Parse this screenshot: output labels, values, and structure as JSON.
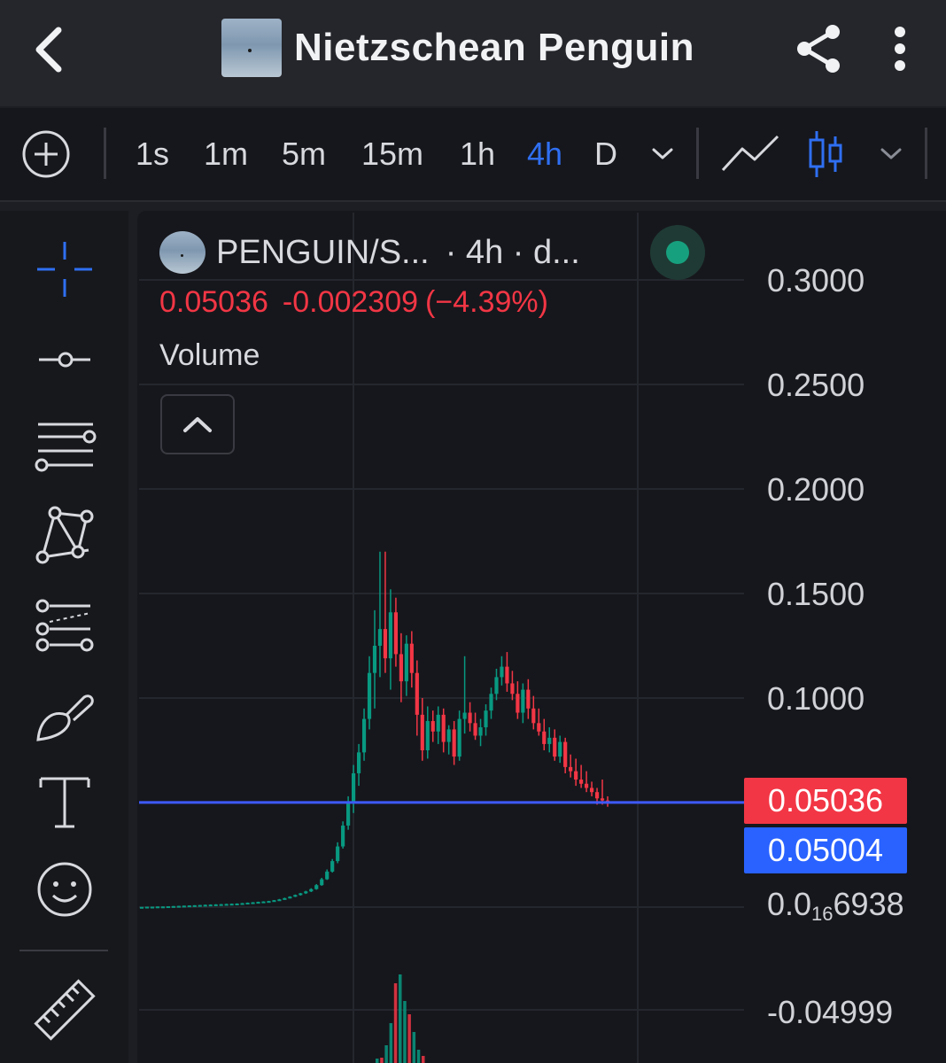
{
  "appbar": {
    "title": "Nietzschean Penguin",
    "back_icon": "chevron-left-icon",
    "share_icon": "share-icon",
    "more_icon": "more-vertical-icon"
  },
  "toolbar": {
    "add_icon": "plus-circle-icon",
    "intervals": [
      "1s",
      "1m",
      "5m",
      "15m",
      "1h",
      "4h",
      "D"
    ],
    "active_interval": "4h",
    "interval_dropdown_icon": "chevron-down-icon",
    "chart_type_line_icon": "line-chart-icon",
    "chart_type_candles_icon": "candlestick-icon",
    "chart_type_dropdown_icon": "chevron-down-icon"
  },
  "sidebar": {
    "tools": [
      {
        "name": "crosshair-icon"
      },
      {
        "name": "horizontal-line-icon"
      },
      {
        "name": "parallel-lines-icon"
      },
      {
        "name": "pattern-icon"
      },
      {
        "name": "fib-lines-icon"
      },
      {
        "name": "brush-icon"
      },
      {
        "name": "text-icon"
      },
      {
        "name": "emoji-icon"
      },
      {
        "name": "ruler-icon"
      }
    ]
  },
  "legend": {
    "symbol": "PENGUIN/S...",
    "meta": "· 4h · d...",
    "last": "0.05036",
    "change": "-0.002309",
    "change_pct": "(−4.39%)",
    "volume_label": "Volume",
    "status_color": "#17a07e"
  },
  "colors": {
    "up": "#089981",
    "down": "#f23645",
    "accent": "#2f6ff2",
    "background": "#16171c"
  },
  "chart_data": {
    "type": "candlestick",
    "y_ticks": [
      "0.3000",
      "0.2500",
      "0.2000",
      "0.1500",
      "0.1000"
    ],
    "y_tick_small_prefix": "0.0",
    "y_tick_small_subscript": "16",
    "y_tick_small_suffix": "6938",
    "y_tick_bottom": "-0.04999",
    "ylim": [
      0.0,
      0.32
    ],
    "price_tags": [
      {
        "value": "0.05036",
        "color": "#f23645"
      },
      {
        "value": "0.05004",
        "color": "#2962ff"
      }
    ],
    "price_line": 0.05004,
    "candles": [
      [
        0.0001,
        0.0001,
        0.0001,
        0.0001
      ],
      [
        0.0001,
        0.0002,
        0.0001,
        0.0002
      ],
      [
        0.0002,
        0.0002,
        0.0001,
        0.0002
      ],
      [
        0.0002,
        0.0003,
        0.0002,
        0.0003
      ],
      [
        0.0003,
        0.0003,
        0.0002,
        0.0003
      ],
      [
        0.0003,
        0.0004,
        0.0003,
        0.0004
      ],
      [
        0.0004,
        0.0005,
        0.0004,
        0.0005
      ],
      [
        0.0005,
        0.0006,
        0.0004,
        0.0006
      ],
      [
        0.0006,
        0.0007,
        0.0005,
        0.0007
      ],
      [
        0.0007,
        0.0008,
        0.0006,
        0.0008
      ],
      [
        0.0008,
        0.0009,
        0.0007,
        0.0009
      ],
      [
        0.0009,
        0.001,
        0.0008,
        0.001
      ],
      [
        0.001,
        0.0012,
        0.0009,
        0.0011
      ],
      [
        0.0011,
        0.0013,
        0.001,
        0.0012
      ],
      [
        0.0012,
        0.0014,
        0.0011,
        0.0013
      ],
      [
        0.0013,
        0.0015,
        0.0012,
        0.0014
      ],
      [
        0.0014,
        0.0016,
        0.0013,
        0.0015
      ],
      [
        0.0015,
        0.0017,
        0.0014,
        0.0016
      ],
      [
        0.0016,
        0.0018,
        0.0015,
        0.0017
      ],
      [
        0.0017,
        0.002,
        0.0016,
        0.0019
      ],
      [
        0.0019,
        0.0022,
        0.0018,
        0.0021
      ],
      [
        0.0021,
        0.0024,
        0.002,
        0.0023
      ],
      [
        0.0023,
        0.0026,
        0.0022,
        0.0025
      ],
      [
        0.0025,
        0.0028,
        0.0024,
        0.0027
      ],
      [
        0.0027,
        0.003,
        0.0026,
        0.0029
      ],
      [
        0.0029,
        0.0034,
        0.0028,
        0.0033
      ],
      [
        0.0033,
        0.0039,
        0.0031,
        0.0037
      ],
      [
        0.0037,
        0.0045,
        0.0035,
        0.0043
      ],
      [
        0.0043,
        0.0052,
        0.0041,
        0.005
      ],
      [
        0.005,
        0.006,
        0.0048,
        0.0058
      ],
      [
        0.0058,
        0.0068,
        0.0055,
        0.0066
      ],
      [
        0.0066,
        0.0078,
        0.0063,
        0.0075
      ],
      [
        0.0075,
        0.009,
        0.0072,
        0.0086
      ],
      [
        0.0086,
        0.011,
        0.0083,
        0.0105
      ],
      [
        0.0105,
        0.014,
        0.0102,
        0.0133
      ],
      [
        0.0133,
        0.018,
        0.013,
        0.017
      ],
      [
        0.017,
        0.023,
        0.0165,
        0.022
      ],
      [
        0.022,
        0.031,
        0.021,
        0.029
      ],
      [
        0.029,
        0.041,
        0.028,
        0.039
      ],
      [
        0.039,
        0.053,
        0.037,
        0.05
      ],
      [
        0.05,
        0.068,
        0.045,
        0.064
      ],
      [
        0.064,
        0.078,
        0.058,
        0.074
      ],
      [
        0.074,
        0.095,
        0.07,
        0.09
      ],
      [
        0.09,
        0.12,
        0.085,
        0.112
      ],
      [
        0.112,
        0.142,
        0.095,
        0.125
      ],
      [
        0.125,
        0.17,
        0.11,
        0.133
      ],
      [
        0.133,
        0.17,
        0.112,
        0.119
      ],
      [
        0.119,
        0.152,
        0.104,
        0.141
      ],
      [
        0.141,
        0.148,
        0.115,
        0.121
      ],
      [
        0.121,
        0.131,
        0.098,
        0.108
      ],
      [
        0.108,
        0.13,
        0.101,
        0.126
      ],
      [
        0.126,
        0.132,
        0.105,
        0.112
      ],
      [
        0.112,
        0.118,
        0.082,
        0.092
      ],
      [
        0.092,
        0.1,
        0.07,
        0.075
      ],
      [
        0.075,
        0.096,
        0.071,
        0.089
      ],
      [
        0.089,
        0.094,
        0.079,
        0.084
      ],
      [
        0.084,
        0.096,
        0.078,
        0.092
      ],
      [
        0.092,
        0.095,
        0.074,
        0.079
      ],
      [
        0.079,
        0.087,
        0.073,
        0.085
      ],
      [
        0.085,
        0.089,
        0.068,
        0.072
      ],
      [
        0.072,
        0.094,
        0.07,
        0.09
      ],
      [
        0.09,
        0.12,
        0.083,
        0.093
      ],
      [
        0.093,
        0.098,
        0.084,
        0.088
      ],
      [
        0.088,
        0.093,
        0.08,
        0.082
      ],
      [
        0.082,
        0.09,
        0.077,
        0.086
      ],
      [
        0.086,
        0.097,
        0.082,
        0.094
      ],
      [
        0.094,
        0.105,
        0.09,
        0.102
      ],
      [
        0.102,
        0.114,
        0.099,
        0.11
      ],
      [
        0.11,
        0.12,
        0.106,
        0.115
      ],
      [
        0.115,
        0.122,
        0.103,
        0.107
      ],
      [
        0.107,
        0.113,
        0.099,
        0.102
      ],
      [
        0.102,
        0.108,
        0.09,
        0.093
      ],
      [
        0.093,
        0.107,
        0.088,
        0.104
      ],
      [
        0.104,
        0.109,
        0.09,
        0.095
      ],
      [
        0.095,
        0.101,
        0.085,
        0.088
      ],
      [
        0.088,
        0.095,
        0.082,
        0.084
      ],
      [
        0.084,
        0.09,
        0.075,
        0.078
      ],
      [
        0.078,
        0.086,
        0.074,
        0.081
      ],
      [
        0.081,
        0.085,
        0.07,
        0.072
      ],
      [
        0.072,
        0.082,
        0.069,
        0.079
      ],
      [
        0.079,
        0.081,
        0.064,
        0.067
      ],
      [
        0.067,
        0.073,
        0.062,
        0.065
      ],
      [
        0.065,
        0.071,
        0.058,
        0.061
      ],
      [
        0.061,
        0.068,
        0.057,
        0.059
      ],
      [
        0.059,
        0.065,
        0.055,
        0.057
      ],
      [
        0.057,
        0.06,
        0.053,
        0.055
      ],
      [
        0.055,
        0.057,
        0.049,
        0.052
      ],
      [
        0.052,
        0.061,
        0.049,
        0.051
      ],
      [
        0.051,
        0.053,
        0.048,
        0.05036
      ]
    ],
    "volume": [
      0.05,
      0.06,
      0.2,
      0.45,
      0.9,
      1.0,
      0.7,
      0.55,
      0.35,
      0.15,
      0.08
    ]
  }
}
